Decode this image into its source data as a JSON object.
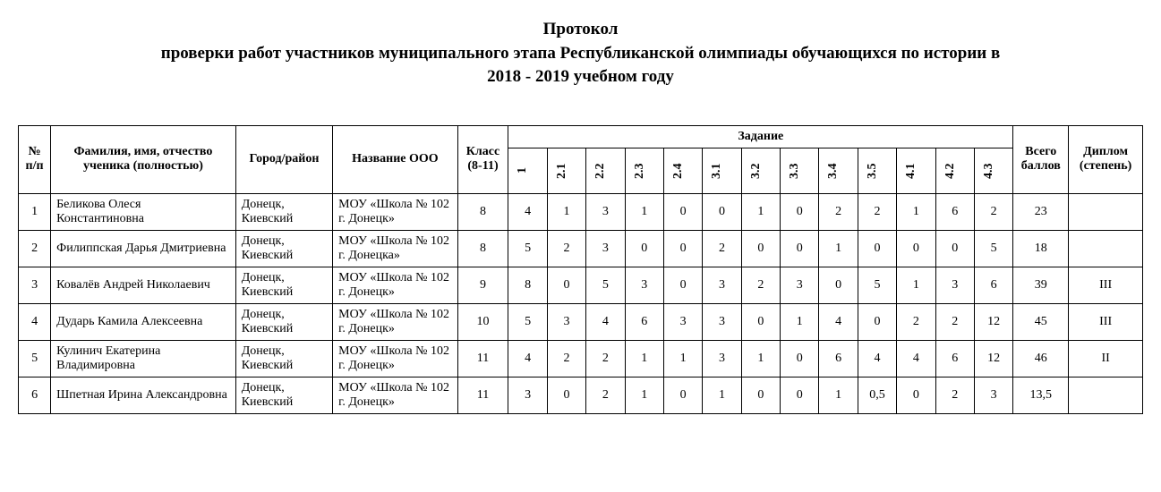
{
  "title_line1": "Протокол",
  "title_line2": "проверки работ участников муниципального этапа Республиканской олимпиады обучающихся по истории в",
  "title_line3": "2018 - 2019 учебном году",
  "headers": {
    "num": "№ п/п",
    "fio": "Фамилия, имя, отчество ученика (полностью)",
    "city": "Город/район",
    "school": "Название ООО",
    "grade": "Класс (8-11)",
    "task_group": "Задание",
    "total": "Всего баллов",
    "diploma": "Диплом (степень)"
  },
  "task_cols": [
    "1",
    "2.1",
    "2.2",
    "2.3",
    "2.4",
    "3.1",
    "3.2",
    "3.3",
    "3.4",
    "3.5",
    "4.1",
    "4.2",
    "4.3"
  ],
  "rows": [
    {
      "n": "1",
      "fio": "Беликова Олеся Константиновна",
      "city": "Донецк, Киевский",
      "school": "МОУ «Школа № 102 г. Донецк»",
      "grade": "8",
      "scores": [
        "4",
        "1",
        "3",
        "1",
        "0",
        "0",
        "1",
        "0",
        "2",
        "2",
        "1",
        "6",
        "2"
      ],
      "total": "23",
      "diploma": ""
    },
    {
      "n": "2",
      "fio": "Филиппская  Дарья Дмитриевна",
      "city": "Донецк, Киевский",
      "school": "МОУ «Школа № 102 г. Донецка»",
      "grade": "8",
      "scores": [
        "5",
        "2",
        "3",
        "0",
        "0",
        "2",
        "0",
        "0",
        "1",
        "0",
        "0",
        "0",
        "5"
      ],
      "total": "18",
      "diploma": ""
    },
    {
      "n": "3",
      "fio": "Ковалёв Андрей Николаевич",
      "city": "Донецк, Киевский",
      "school": "МОУ «Школа № 102 г. Донецк»",
      "grade": "9",
      "scores": [
        "8",
        "0",
        "5",
        "3",
        "0",
        "3",
        "2",
        "3",
        "0",
        "5",
        "1",
        "3",
        "6"
      ],
      "total": "39",
      "diploma": "III"
    },
    {
      "n": "4",
      "fio": "Дударь Камила Алексеевна",
      "city": "Донецк, Киевский",
      "school": "МОУ «Школа № 102 г. Донецк»",
      "grade": "10",
      "scores": [
        "5",
        "3",
        "4",
        "6",
        "3",
        "3",
        "0",
        "1",
        "4",
        "0",
        "2",
        "2",
        "12"
      ],
      "total": "45",
      "diploma": "III"
    },
    {
      "n": "5",
      "fio": "Кулинич Екатерина Владимировна",
      "city": "Донецк, Киевский",
      "school": "МОУ «Школа № 102 г. Донецк»",
      "grade": "11",
      "scores": [
        "4",
        "2",
        "2",
        "1",
        "1",
        "3",
        "1",
        "0",
        "6",
        "4",
        "4",
        "6",
        "12"
      ],
      "total": "46",
      "diploma": "II"
    },
    {
      "n": "6",
      "fio": "Шпетная Ирина Александровна",
      "city": "Донецк, Киевский",
      "school": "МОУ «Школа № 102 г. Донецк»",
      "grade": "11",
      "scores": [
        "3",
        "0",
        "2",
        "1",
        "0",
        "1",
        "0",
        "0",
        "1",
        "0,5",
        "0",
        "2",
        "3"
      ],
      "total": "13,5",
      "diploma": ""
    }
  ],
  "layout": {
    "col_widths": {
      "num": "35px",
      "fio": "200px",
      "city": "105px",
      "school": "135px",
      "grade": "55px",
      "task": "42px",
      "total": "60px",
      "diploma": "80px"
    }
  }
}
